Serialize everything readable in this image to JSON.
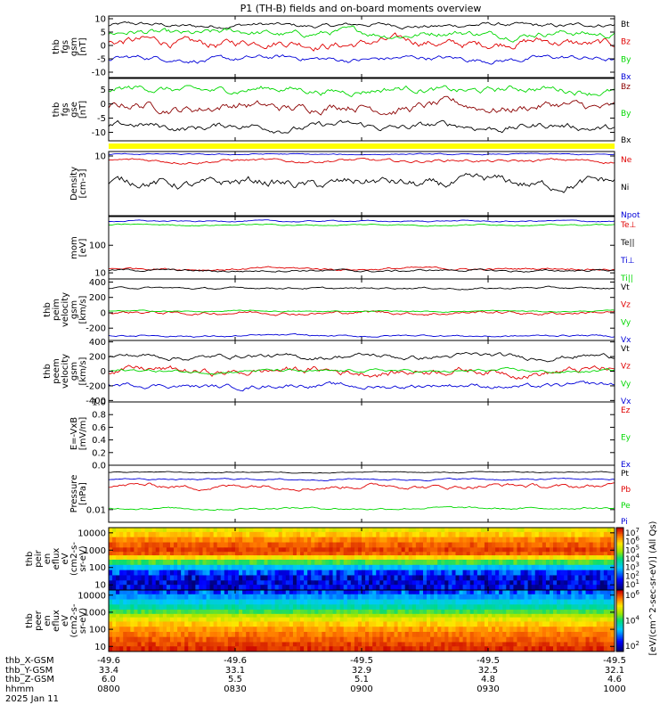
{
  "title": "P1 (TH-B) fields and on-board moments overview",
  "time_axis": {
    "tick_labels": {
      "thb_X-GSM": [
        "-49.6",
        "-49.6",
        "-49.5",
        "-49.5",
        "-49.5"
      ],
      "thb_Y-GSM": [
        "33.4",
        "33.1",
        "32.9",
        "32.5",
        "32.1"
      ],
      "thb_Z-GSM": [
        "6.0",
        "5.5",
        "5.1",
        "4.8",
        "4.6"
      ],
      "hhmm": [
        "0800",
        "0830",
        "0900",
        "0930",
        "1000"
      ]
    },
    "row_labels": [
      "thb_X-GSM",
      "thb_Y-GSM",
      "thb_Z-GSM",
      "hhmm",
      "2025 Jan 11"
    ],
    "ticks_hours": [
      8.0,
      8.5,
      9.0,
      9.5,
      10.0
    ],
    "range_hours": [
      8.0,
      10.0
    ]
  },
  "colors": {
    "black": "#000000",
    "red": "#e00000",
    "green": "#00d800",
    "blue": "#0000d8",
    "yellow": "#ffff00"
  },
  "colorbar": {
    "label": "[eV/(cm^2-sec-sr-eV)] (All Qs)",
    "upper_ticks": [
      "10^7",
      "10^6",
      "10^5",
      "10^4",
      "10^3",
      "10^2",
      "10^1"
    ],
    "lower_ticks": [
      "10^6",
      "10^4",
      "10^2"
    ]
  },
  "chart_data": [
    {
      "type": "line",
      "panel": "fgs_gsm",
      "ylabel": [
        "thb",
        "fgs",
        "gsm",
        "[nT]"
      ],
      "yticks": [
        "10",
        "5",
        "0",
        "-5",
        "-10"
      ],
      "ylim": [
        -12,
        11
      ],
      "series": [
        {
          "name": "Bt",
          "color": "black",
          "level": 7.5,
          "noise": 1.0
        },
        {
          "name": "Bz",
          "color": "red",
          "level": 1.0,
          "noise": 2.0
        },
        {
          "name": "By",
          "color": "green",
          "level": 4.5,
          "noise": 1.5
        },
        {
          "name": "Bx",
          "color": "blue",
          "level": -5.0,
          "noise": 1.2
        }
      ]
    },
    {
      "type": "line",
      "panel": "fgs_gse",
      "ylabel": [
        "thb",
        "fgs",
        "gse",
        "[nT]"
      ],
      "yticks": [
        "5",
        "0",
        "-5",
        "-10"
      ],
      "ylim": [
        -13,
        9
      ],
      "series": [
        {
          "name": "Bz",
          "color": "#8b0000",
          "level": -1.0,
          "noise": 2.0
        },
        {
          "name": "By",
          "color": "green",
          "level": 5.0,
          "noise": 1.5
        },
        {
          "name": "Bx",
          "color": "black",
          "level": -8.0,
          "noise": 1.5
        }
      ]
    },
    {
      "type": "line",
      "panel": "density",
      "scale": "log",
      "ylabel": [
        "Density",
        "[cm-3]"
      ],
      "yticks": [
        "10"
      ],
      "ylim": [
        0.3,
        13
      ],
      "series": [
        {
          "name": "Ne",
          "color": "red",
          "level": 7.5,
          "noise": 0.05
        },
        {
          "name": "Ni",
          "color": "black",
          "level": 2.0,
          "noise": 0.15
        },
        {
          "name": "Npot",
          "color": "blue",
          "level": 11.0,
          "noise": 0.02
        }
      ]
    },
    {
      "type": "line",
      "panel": "temperature",
      "scale": "log",
      "ylabel": [
        "mom",
        "[eV]"
      ],
      "yticks": [
        "100",
        "10"
      ],
      "ylim": [
        6,
        1100
      ],
      "series": [
        {
          "name": "Te⊥",
          "color": "red",
          "level": 14.0,
          "noise": 0.05
        },
        {
          "name": "Te||",
          "color": "black",
          "level": 12.0,
          "noise": 0.05
        },
        {
          "name": "Ti⊥",
          "color": "blue",
          "level": 750.0,
          "noise": 0.03
        },
        {
          "name": "Ti||",
          "color": "green",
          "level": 550.0,
          "noise": 0.03
        }
      ]
    },
    {
      "type": "line",
      "panel": "peim_velocity",
      "ylabel": [
        "thb",
        "peim",
        "velocity",
        "gsm",
        "[km/s]"
      ],
      "yticks": [
        "400",
        "200",
        "0",
        "-200"
      ],
      "ylim": [
        -360,
        440
      ],
      "series": [
        {
          "name": "Vt",
          "color": "black",
          "level": 320,
          "noise": 15
        },
        {
          "name": "Vz",
          "color": "red",
          "level": 0,
          "noise": 25
        },
        {
          "name": "Vy",
          "color": "green",
          "level": 20,
          "noise": 10
        },
        {
          "name": "Vx",
          "color": "blue",
          "level": -300,
          "noise": 15
        }
      ]
    },
    {
      "type": "line",
      "panel": "peem_velocity",
      "ylabel": [
        "thb",
        "peem",
        "velocity",
        "gsm",
        "[km/s]"
      ],
      "yticks": [
        "400",
        "200",
        "0",
        "-200",
        "-400"
      ],
      "ylim": [
        -420,
        420
      ],
      "series": [
        {
          "name": "Vt",
          "color": "black",
          "level": 200,
          "noise": 40
        },
        {
          "name": "Vz",
          "color": "red",
          "level": 0,
          "noise": 60
        },
        {
          "name": "Vy",
          "color": "green",
          "level": 0,
          "noise": 25
        },
        {
          "name": "Vx",
          "color": "blue",
          "level": -200,
          "noise": 40
        }
      ]
    },
    {
      "type": "line",
      "panel": "efield",
      "ylabel": [
        "E=-VxB",
        "[mV/m]"
      ],
      "yticks": [
        "1.0",
        "0.8",
        "0.6",
        "0.4",
        "0.2",
        "0.0"
      ],
      "ylim": [
        0,
        1
      ],
      "series": [
        {
          "name": "Ez",
          "color": "red"
        },
        {
          "name": "Ey",
          "color": "green"
        },
        {
          "name": "Ex",
          "color": "blue"
        }
      ]
    },
    {
      "type": "line",
      "panel": "pressure",
      "scale": "log",
      "ylabel": [
        "Pressure",
        "[nPa]"
      ],
      "yticks": [
        "0.01"
      ],
      "ylim": [
        0.004,
        0.25
      ],
      "series": [
        {
          "name": "Pt",
          "color": "black",
          "level": 0.15,
          "noise": 0.02
        },
        {
          "name": "Pb",
          "color": "red",
          "level": 0.055,
          "noise": 0.08
        },
        {
          "name": "Pe",
          "color": "green",
          "level": 0.011,
          "noise": 0.04
        },
        {
          "name": "Pi",
          "color": "blue",
          "level": 0.09,
          "noise": 0.03
        }
      ]
    },
    {
      "type": "heatmap",
      "panel": "peir_eflux",
      "ylabel": [
        "thb",
        "peir",
        "en",
        "eflux",
        "eV",
        "(cm2-s-",
        "sr-eV)"
      ],
      "yticks": [
        "10000",
        "1000",
        "100",
        "10"
      ],
      "ylim_log": [
        0.7,
        4.3
      ],
      "energy_bands_log": [
        4.2,
        3.9,
        3.6,
        3.3,
        3.0,
        2.8,
        2.6,
        2.3,
        2.0,
        1.7,
        1.4,
        1.1,
        0.9
      ],
      "intensity_levels": [
        0.72,
        0.78,
        0.85,
        0.9,
        0.93,
        0.9,
        0.75,
        0.55,
        0.35,
        0.2,
        0.12,
        0.1,
        0.12
      ]
    },
    {
      "type": "heatmap",
      "panel": "peer_eflux",
      "ylabel": [
        "thb",
        "peer",
        "en",
        "eflux",
        "eV",
        "(cm2-s-",
        "sr-eV)"
      ],
      "yticks": [
        "10000",
        "1000",
        "100",
        "10"
      ],
      "ylim_log": [
        0.7,
        4.3
      ],
      "energy_bands_log": [
        4.2,
        3.9,
        3.6,
        3.3,
        3.0,
        2.8,
        2.6,
        2.3,
        2.0,
        1.7,
        1.4,
        1.1,
        0.9
      ],
      "intensity_levels": [
        0.22,
        0.3,
        0.38,
        0.45,
        0.55,
        0.65,
        0.72,
        0.78,
        0.83,
        0.87,
        0.9,
        0.93,
        0.95
      ]
    }
  ]
}
